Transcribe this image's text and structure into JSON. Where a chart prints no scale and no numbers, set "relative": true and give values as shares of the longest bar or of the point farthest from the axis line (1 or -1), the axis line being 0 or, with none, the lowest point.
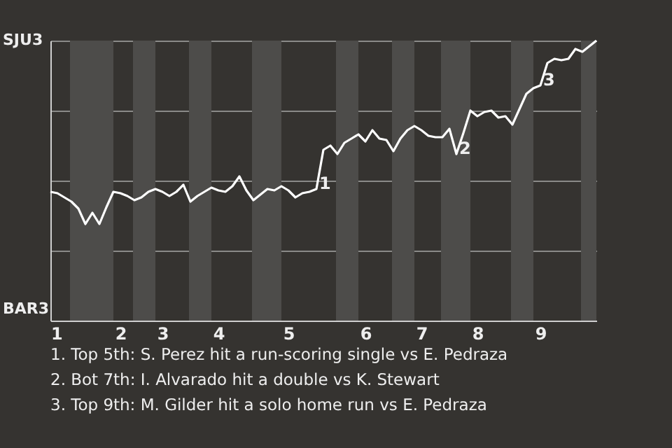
{
  "chart_data": {
    "type": "line",
    "categories": [
      "1",
      null,
      null,
      null,
      null,
      null,
      null,
      null,
      null,
      null,
      "2",
      null,
      null,
      null,
      null,
      null,
      "3",
      null,
      null,
      null,
      null,
      null,
      null,
      null,
      "4",
      null,
      null,
      null,
      null,
      null,
      null,
      null,
      null,
      null,
      "5",
      null,
      null,
      null,
      null,
      null,
      null,
      null,
      null,
      null,
      null,
      "6",
      null,
      null,
      null,
      null,
      null,
      null,
      null,
      "7",
      null,
      null,
      null,
      null,
      null,
      null,
      null,
      "8",
      null,
      null,
      null,
      null,
      null,
      null,
      null,
      null,
      "9",
      null,
      null,
      null,
      null,
      null,
      null,
      null,
      null
    ],
    "relative": true,
    "series": [
      {
        "color": "#ffffff",
        "values": [
          0.46,
          0.455,
          0.44,
          0.425,
          0.4,
          0.345,
          0.385,
          0.345,
          0.405,
          0.46,
          0.455,
          0.445,
          0.43,
          0.44,
          0.46,
          0.47,
          0.46,
          0.445,
          0.46,
          0.485,
          0.425,
          0.445,
          0.46,
          0.475,
          0.465,
          0.46,
          0.48,
          0.515,
          0.465,
          0.43,
          0.45,
          0.47,
          0.465,
          0.48,
          0.465,
          0.44,
          0.455,
          0.46,
          0.47,
          0.61,
          0.625,
          0.595,
          0.635,
          0.65,
          0.665,
          0.64,
          0.68,
          0.65,
          0.645,
          0.605,
          0.65,
          0.68,
          0.695,
          0.68,
          0.66,
          0.655,
          0.655,
          0.685,
          0.595,
          0.67,
          0.75,
          0.73,
          0.745,
          0.75,
          0.725,
          0.73,
          0.7,
          0.755,
          0.81,
          0.83,
          0.84,
          0.92,
          0.935,
          0.93,
          0.935,
          0.97,
          0.96,
          0.98,
          1.0
        ]
      }
    ],
    "grid": "y",
    "marker": "none",
    "line_style": "solid",
    "annotations": [
      "SJU3",
      "BAR3",
      "1",
      "2",
      "3",
      "1. Top 5th: S. Perez hit a run-scoring single vs E. Pedraza",
      "2. Bot 7th: I. Alvarado hit a double vs K. Stewart",
      "3. Top 9th: M. Gilder hit a solo home run vs E. Pedraza"
    ]
  }
}
